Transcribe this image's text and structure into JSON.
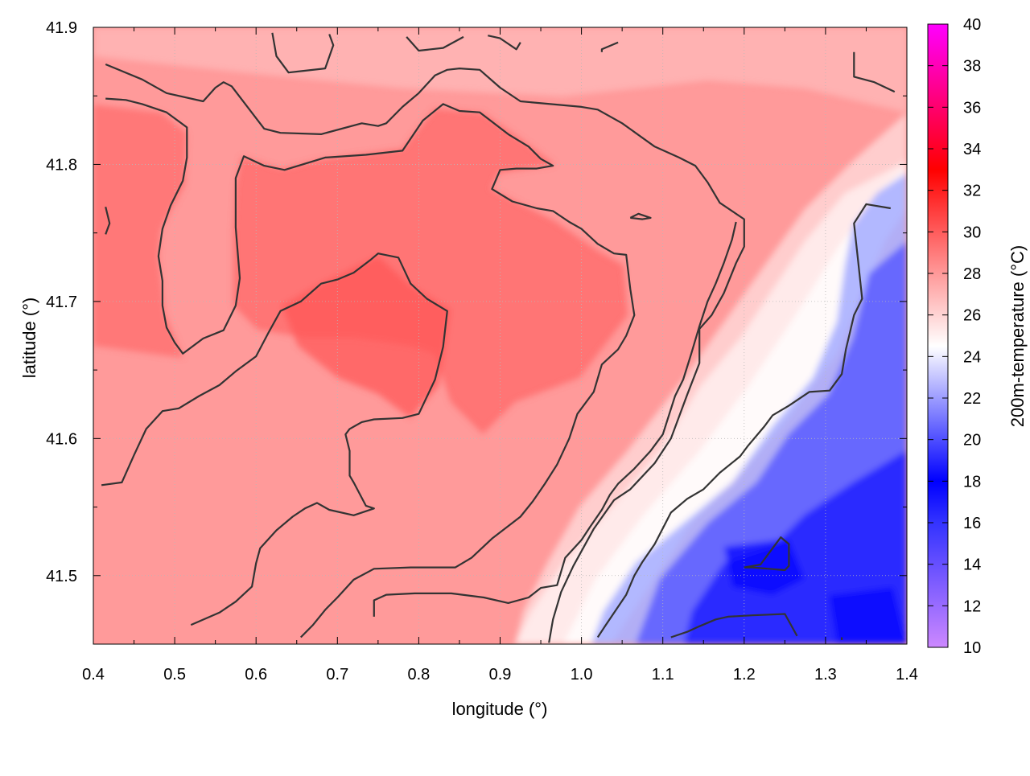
{
  "chart_data": {
    "type": "heatmap",
    "xlabel": "longitude (°)",
    "ylabel": "latitude (°)",
    "xlim": [
      0.4,
      1.4
    ],
    "ylim": [
      41.45,
      41.9
    ],
    "x_ticks": [
      "0.4",
      "0.5",
      "0.6",
      "0.7",
      "0.8",
      "0.9",
      "1.0",
      "1.1",
      "1.2",
      "1.3",
      "1.4"
    ],
    "y_ticks": [
      "41.5",
      "41.6",
      "41.7",
      "41.8",
      "41.9"
    ],
    "grid": true,
    "colorbar": {
      "label": "200m-temperature (°C)",
      "range": [
        10,
        40
      ],
      "ticks": [
        "10",
        "12",
        "14",
        "16",
        "18",
        "20",
        "22",
        "24",
        "26",
        "28",
        "30",
        "32",
        "34",
        "36",
        "38",
        "40"
      ],
      "colors": [
        "#cc88ff",
        "#3333ff",
        "#0000ff",
        "#ffffff",
        "#ff9999",
        "#ff0000",
        "#ff00ff"
      ],
      "stops": [
        10,
        16,
        18,
        24.5,
        28,
        33,
        40
      ]
    },
    "contour_color": "#333333",
    "contours": [
      [
        [
          0.415,
          41.873
        ],
        [
          0.46,
          41.862
        ],
        [
          0.49,
          41.852
        ],
        [
          0.535,
          41.846
        ],
        [
          0.55,
          41.856
        ],
        [
          0.56,
          41.86
        ],
        [
          0.57,
          41.857
        ],
        [
          0.61,
          41.826
        ],
        [
          0.63,
          41.823
        ],
        [
          0.68,
          41.822
        ],
        [
          0.73,
          41.83
        ],
        [
          0.75,
          41.828
        ],
        [
          0.76,
          41.83
        ],
        [
          0.78,
          41.842
        ],
        [
          0.8,
          41.852
        ],
        [
          0.82,
          41.865
        ],
        [
          0.835,
          41.869
        ],
        [
          0.85,
          41.87
        ],
        [
          0.875,
          41.869
        ],
        [
          0.9,
          41.856
        ],
        [
          0.925,
          41.846
        ],
        [
          1.0,
          41.842
        ],
        [
          1.02,
          41.84
        ],
        [
          1.05,
          41.83
        ],
        [
          1.09,
          41.813
        ],
        [
          1.12,
          41.805
        ],
        [
          1.14,
          41.799
        ],
        [
          1.155,
          41.787
        ],
        [
          1.17,
          41.772
        ],
        [
          1.2,
          41.76
        ],
        [
          1.2,
          41.74
        ],
        [
          1.19,
          41.728
        ],
        [
          1.175,
          41.706
        ],
        [
          1.16,
          41.69
        ],
        [
          1.145,
          41.68
        ],
        [
          1.145,
          41.655
        ],
        [
          1.13,
          41.632
        ],
        [
          1.11,
          41.6
        ],
        [
          1.09,
          41.582
        ],
        [
          1.06,
          41.563
        ],
        [
          1.04,
          41.555
        ],
        [
          1.015,
          41.534
        ],
        [
          0.99,
          41.507
        ],
        [
          0.975,
          41.488
        ],
        [
          0.965,
          41.468
        ],
        [
          0.96,
          41.451
        ]
      ],
      [
        [
          0.415,
          41.848
        ],
        [
          0.44,
          41.847
        ],
        [
          0.46,
          41.844
        ],
        [
          0.49,
          41.838
        ],
        [
          0.515,
          41.827
        ],
        [
          0.515,
          41.805
        ],
        [
          0.51,
          41.788
        ],
        [
          0.495,
          41.77
        ],
        [
          0.485,
          41.753
        ],
        [
          0.48,
          41.733
        ],
        [
          0.485,
          41.715
        ],
        [
          0.485,
          41.697
        ],
        [
          0.49,
          41.681
        ],
        [
          0.5,
          41.67
        ],
        [
          0.51,
          41.662
        ],
        [
          0.535,
          41.673
        ],
        [
          0.56,
          41.679
        ],
        [
          0.575,
          41.697
        ],
        [
          0.58,
          41.717
        ],
        [
          0.575,
          41.754
        ],
        [
          0.575,
          41.79
        ],
        [
          0.585,
          41.806
        ],
        [
          0.61,
          41.799
        ],
        [
          0.635,
          41.796
        ],
        [
          0.685,
          41.805
        ],
        [
          0.735,
          41.807
        ],
        [
          0.78,
          41.81
        ],
        [
          0.805,
          41.832
        ],
        [
          0.83,
          41.844
        ],
        [
          0.85,
          41.839
        ],
        [
          0.875,
          41.838
        ],
        [
          0.91,
          41.822
        ],
        [
          0.935,
          41.813
        ],
        [
          0.95,
          41.804
        ],
        [
          0.965,
          41.799
        ],
        [
          0.945,
          41.797
        ],
        [
          0.92,
          41.797
        ],
        [
          0.9,
          41.796
        ],
        [
          0.89,
          41.782
        ],
        [
          0.915,
          41.773
        ],
        [
          0.945,
          41.768
        ],
        [
          0.965,
          41.766
        ],
        [
          0.985,
          41.758
        ],
        [
          1.0,
          41.753
        ],
        [
          1.02,
          41.742
        ],
        [
          1.04,
          41.735
        ],
        [
          1.055,
          41.734
        ],
        [
          1.06,
          41.709
        ],
        [
          1.065,
          41.69
        ],
        [
          1.055,
          41.675
        ],
        [
          1.045,
          41.665
        ],
        [
          1.025,
          41.654
        ],
        [
          1.015,
          41.634
        ],
        [
          0.995,
          41.618
        ],
        [
          0.985,
          41.6
        ],
        [
          0.97,
          41.581
        ],
        [
          0.955,
          41.567
        ],
        [
          0.94,
          41.554
        ],
        [
          0.925,
          41.543
        ],
        [
          0.89,
          41.527
        ],
        [
          0.865,
          41.513
        ],
        [
          0.845,
          41.506
        ],
        [
          0.79,
          41.506
        ],
        [
          0.745,
          41.505
        ],
        [
          0.72,
          41.497
        ],
        [
          0.7,
          41.484
        ],
        [
          0.685,
          41.475
        ],
        [
          0.67,
          41.464
        ],
        [
          0.655,
          41.455
        ]
      ],
      [
        [
          0.41,
          41.566
        ],
        [
          0.435,
          41.568
        ],
        [
          0.45,
          41.588
        ],
        [
          0.465,
          41.607
        ],
        [
          0.485,
          41.62
        ],
        [
          0.505,
          41.622
        ],
        [
          0.53,
          41.631
        ],
        [
          0.555,
          41.639
        ],
        [
          0.575,
          41.649
        ],
        [
          0.6,
          41.66
        ],
        [
          0.615,
          41.677
        ],
        [
          0.63,
          41.693
        ],
        [
          0.655,
          41.7
        ],
        [
          0.68,
          41.713
        ],
        [
          0.7,
          41.716
        ],
        [
          0.72,
          41.721
        ],
        [
          0.74,
          41.73
        ],
        [
          0.75,
          41.735
        ],
        [
          0.775,
          41.732
        ],
        [
          0.79,
          41.713
        ],
        [
          0.81,
          41.702
        ],
        [
          0.835,
          41.693
        ],
        [
          0.83,
          41.667
        ],
        [
          0.82,
          41.643
        ],
        [
          0.8,
          41.618
        ],
        [
          0.78,
          41.615
        ],
        [
          0.745,
          41.614
        ],
        [
          0.73,
          41.612
        ],
        [
          0.715,
          41.607
        ],
        [
          0.71,
          41.603
        ],
        [
          0.715,
          41.591
        ],
        [
          0.715,
          41.573
        ],
        [
          0.72,
          41.568
        ],
        [
          0.735,
          41.551
        ],
        [
          0.745,
          41.549
        ],
        [
          0.73,
          41.546
        ],
        [
          0.72,
          41.544
        ],
        [
          0.69,
          41.548
        ],
        [
          0.675,
          41.553
        ],
        [
          0.66,
          41.549
        ],
        [
          0.645,
          41.543
        ],
        [
          0.625,
          41.533
        ],
        [
          0.605,
          41.52
        ],
        [
          0.6,
          41.509
        ],
        [
          0.595,
          41.492
        ],
        [
          0.575,
          41.481
        ],
        [
          0.555,
          41.473
        ],
        [
          0.52,
          41.464
        ]
      ],
      [
        [
          0.415,
          41.769
        ],
        [
          0.42,
          41.757
        ],
        [
          0.415,
          41.749
        ]
      ],
      [
        [
          1.06,
          41.761
        ],
        [
          1.07,
          41.764
        ],
        [
          1.085,
          41.761
        ],
        [
          1.075,
          41.76
        ],
        [
          1.06,
          41.761
        ]
      ],
      [
        [
          0.62,
          41.896
        ],
        [
          0.625,
          41.879
        ],
        [
          0.64,
          41.867
        ],
        [
          0.655,
          41.868
        ],
        [
          0.685,
          41.87
        ],
        [
          0.695,
          41.887
        ],
        [
          0.69,
          41.895
        ]
      ],
      [
        [
          0.785,
          41.893
        ],
        [
          0.8,
          41.883
        ],
        [
          0.83,
          41.885
        ],
        [
          0.855,
          41.893
        ]
      ],
      [
        [
          0.885,
          41.894
        ],
        [
          0.9,
          41.892
        ],
        [
          0.92,
          41.884
        ],
        [
          0.925,
          41.889
        ]
      ],
      [
        [
          1.025,
          41.882
        ],
        [
          1.025,
          41.884
        ],
        [
          1.045,
          41.889
        ]
      ],
      [
        [
          1.335,
          41.882
        ],
        [
          1.335,
          41.864
        ],
        [
          1.36,
          41.86
        ],
        [
          1.385,
          41.853
        ]
      ],
      [
        [
          0.745,
          41.47
        ],
        [
          0.745,
          41.482
        ],
        [
          0.76,
          41.486
        ],
        [
          0.795,
          41.487
        ],
        [
          0.84,
          41.487
        ],
        [
          0.88,
          41.484
        ],
        [
          0.91,
          41.48
        ],
        [
          0.935,
          41.484
        ],
        [
          0.95,
          41.491
        ],
        [
          0.97,
          41.493
        ],
        [
          0.98,
          41.513
        ],
        [
          1.0,
          41.526
        ],
        [
          1.01,
          41.535
        ],
        [
          1.025,
          41.548
        ],
        [
          1.035,
          41.559
        ],
        [
          1.045,
          41.567
        ],
        [
          1.065,
          41.578
        ],
        [
          1.085,
          41.591
        ],
        [
          1.1,
          41.603
        ],
        [
          1.115,
          41.631
        ],
        [
          1.125,
          41.643
        ],
        [
          1.135,
          41.662
        ],
        [
          1.145,
          41.682
        ],
        [
          1.155,
          41.7
        ],
        [
          1.165,
          41.713
        ],
        [
          1.175,
          41.728
        ],
        [
          1.185,
          41.745
        ],
        [
          1.19,
          41.758
        ]
      ],
      [
        [
          1.02,
          41.455
        ],
        [
          1.03,
          41.464
        ],
        [
          1.055,
          41.486
        ],
        [
          1.065,
          41.5
        ],
        [
          1.075,
          41.51
        ],
        [
          1.09,
          41.523
        ],
        [
          1.11,
          41.546
        ],
        [
          1.13,
          41.556
        ],
        [
          1.15,
          41.563
        ],
        [
          1.17,
          41.575
        ],
        [
          1.195,
          41.587
        ],
        [
          1.205,
          41.595
        ],
        [
          1.225,
          41.609
        ],
        [
          1.235,
          41.617
        ],
        [
          1.255,
          41.624
        ],
        [
          1.28,
          41.634
        ],
        [
          1.305,
          41.635
        ],
        [
          1.32,
          41.647
        ],
        [
          1.325,
          41.665
        ],
        [
          1.335,
          41.69
        ],
        [
          1.345,
          41.702
        ],
        [
          1.34,
          41.73
        ],
        [
          1.335,
          41.757
        ],
        [
          1.35,
          41.771
        ],
        [
          1.38,
          41.768
        ]
      ],
      [
        [
          1.2,
          41.506
        ],
        [
          1.22,
          41.508
        ],
        [
          1.235,
          41.52
        ],
        [
          1.245,
          41.528
        ],
        [
          1.255,
          41.523
        ],
        [
          1.255,
          41.507
        ],
        [
          1.25,
          41.504
        ],
        [
          1.23,
          41.505
        ],
        [
          1.21,
          41.506
        ],
        [
          1.2,
          41.506
        ]
      ],
      [
        [
          1.11,
          41.455
        ],
        [
          1.13,
          41.459
        ],
        [
          1.145,
          41.463
        ],
        [
          1.165,
          41.468
        ],
        [
          1.18,
          41.47
        ],
        [
          1.21,
          41.471
        ],
        [
          1.25,
          41.472
        ],
        [
          1.265,
          41.456
        ]
      ],
      [
        [
          1.32,
          41.455
        ],
        [
          1.32,
          41.453
        ]
      ]
    ]
  }
}
